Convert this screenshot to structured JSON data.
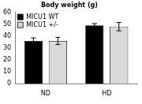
{
  "chart_data": {
    "type": "bar",
    "title": "Body weight (g)",
    "categories": [
      "ND",
      "HD"
    ],
    "series": [
      {
        "name": "MICU1 WT",
        "color": "#000000",
        "values": [
          36,
          49
        ],
        "errors": [
          2.5,
          1.5
        ]
      },
      {
        "name": "MICU1 +/-",
        "color": "#d9d9d9",
        "values": [
          36,
          48
        ],
        "errors": [
          3,
          3.5
        ]
      }
    ],
    "ylim": [
      0,
      60
    ],
    "yticks": [
      0,
      10,
      20,
      30,
      40,
      50,
      60
    ],
    "grid": false,
    "legend": "upper left"
  }
}
